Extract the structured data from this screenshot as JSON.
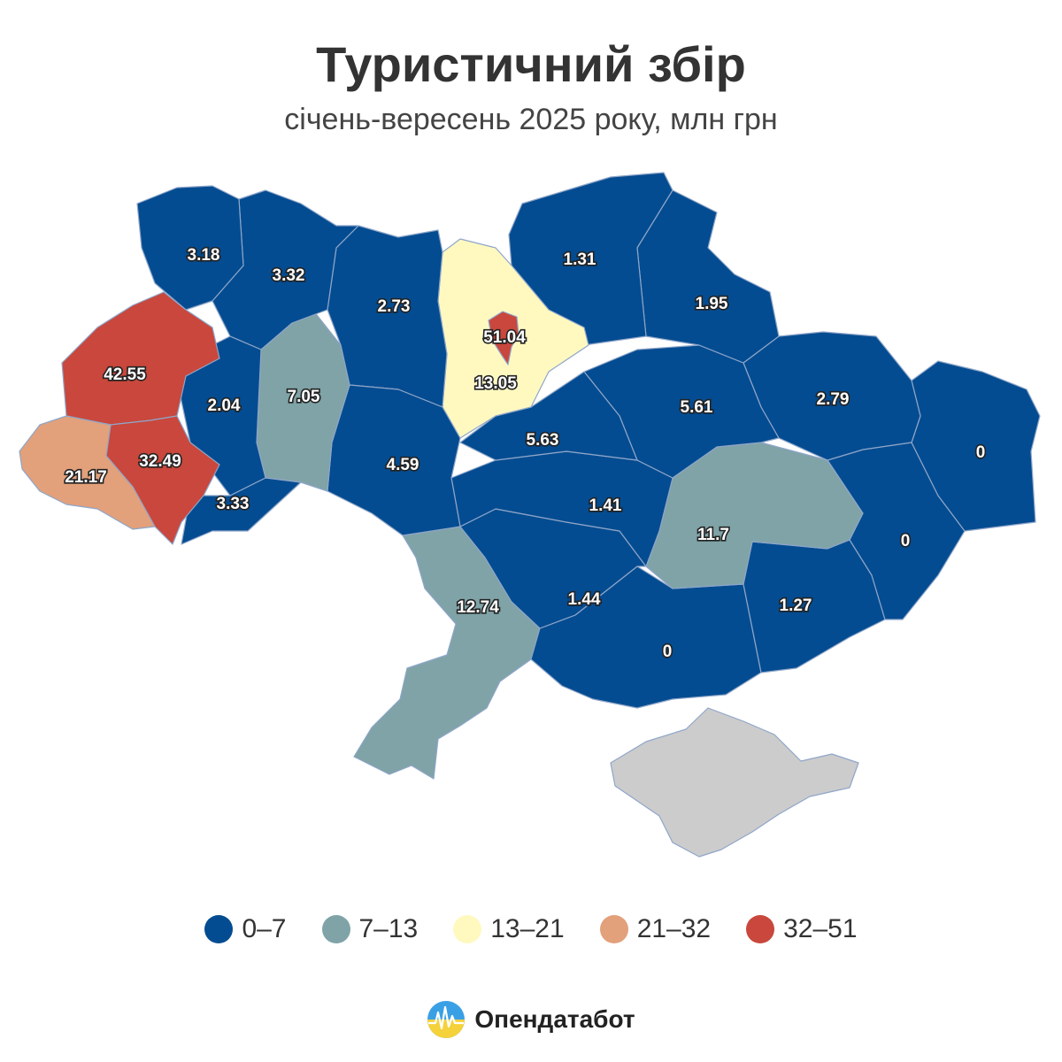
{
  "title": "Туристичний збір",
  "subtitle": "січень-вересень 2025 року, млн грн",
  "colors": {
    "bin_0_7": "#044c91",
    "bin_7_13": "#7fa3a7",
    "bin_13_21": "#fff9c0",
    "bin_21_32": "#e2a07b",
    "bin_32_51": "#c9473c",
    "no_data": "#cccccc",
    "border": "#8fa6c9"
  },
  "legend": [
    {
      "label": "0–7",
      "color": "#044c91"
    },
    {
      "label": "7–13",
      "color": "#7fa3a7"
    },
    {
      "label": "13–21",
      "color": "#fff9c0"
    },
    {
      "label": "21–32",
      "color": "#e2a07b"
    },
    {
      "label": "32–51",
      "color": "#c9473c"
    }
  ],
  "regions": [
    {
      "value": "3.18",
      "bin": "0–7"
    },
    {
      "value": "3.32",
      "bin": "0–7"
    },
    {
      "value": "2.73",
      "bin": "0–7"
    },
    {
      "value": "1.31",
      "bin": "0–7"
    },
    {
      "value": "1.95",
      "bin": "0–7"
    },
    {
      "value": "51.04",
      "bin": "32–51"
    },
    {
      "value": "13.05",
      "bin": "13–21"
    },
    {
      "value": "42.55",
      "bin": "32–51"
    },
    {
      "value": "2.04",
      "bin": "0–7"
    },
    {
      "value": "7.05",
      "bin": "7–13"
    },
    {
      "value": "5.61",
      "bin": "0–7"
    },
    {
      "value": "2.79",
      "bin": "0–7"
    },
    {
      "value": "0",
      "bin": "0–7"
    },
    {
      "value": "21.17",
      "bin": "21–32"
    },
    {
      "value": "32.49",
      "bin": "32–51"
    },
    {
      "value": "4.59",
      "bin": "0–7"
    },
    {
      "value": "5.63",
      "bin": "0–7"
    },
    {
      "value": "3.33",
      "bin": "0–7"
    },
    {
      "value": "1.41",
      "bin": "0–7"
    },
    {
      "value": "11.7",
      "bin": "7–13"
    },
    {
      "value": "0",
      "bin": "0–7"
    },
    {
      "value": "12.74",
      "bin": "7–13"
    },
    {
      "value": "1.44",
      "bin": "0–7"
    },
    {
      "value": "1.27",
      "bin": "0–7"
    },
    {
      "value": "0",
      "bin": "0–7"
    }
  ],
  "brand": {
    "name": "Опендатабот",
    "logo": "opendatabot-logo-icon"
  }
}
